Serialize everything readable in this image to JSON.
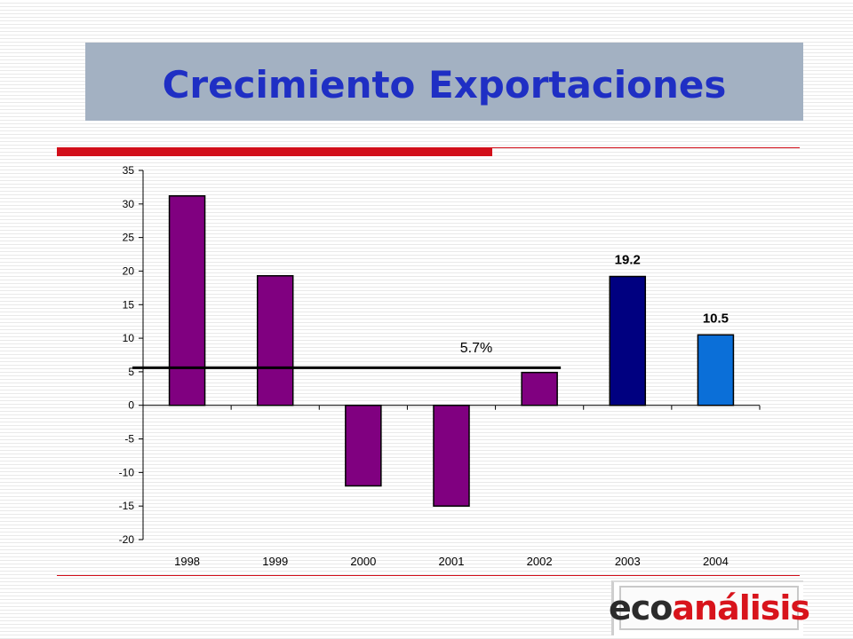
{
  "page": {
    "title": "Crecimiento Exportaciones",
    "logo": {
      "part1": "eco",
      "part2": "análisis"
    }
  },
  "colors": {
    "title_bar": "#a3b1c2",
    "title_text": "#1f2fc4",
    "rule": "#d20f1a",
    "bar_default": "#800080",
    "bar_2003": "#000080",
    "bar_2004": "#0b6fd8"
  },
  "chart_data": {
    "type": "bar",
    "categories": [
      "1998",
      "1999",
      "2000",
      "2001",
      "2002",
      "2003",
      "2004"
    ],
    "values": [
      31.2,
      19.3,
      -12.0,
      -15.0,
      4.9,
      19.2,
      10.5
    ],
    "bar_colors": [
      "#800080",
      "#800080",
      "#800080",
      "#800080",
      "#800080",
      "#000080",
      "#0b6fd8"
    ],
    "data_labels": [
      {
        "category": "2003",
        "text": "19.2"
      },
      {
        "category": "2004",
        "text": "10.5"
      }
    ],
    "reference_line": {
      "value": 5.6,
      "from_category": "1998",
      "to_category": "2002",
      "label": "5.7%"
    },
    "ylim": [
      -20,
      35
    ],
    "yticks": [
      35,
      30,
      25,
      20,
      15,
      10,
      5,
      0,
      -5,
      -10,
      -15,
      -20
    ],
    "xlabel": "",
    "ylabel": "",
    "grid": false,
    "legend": "none"
  }
}
